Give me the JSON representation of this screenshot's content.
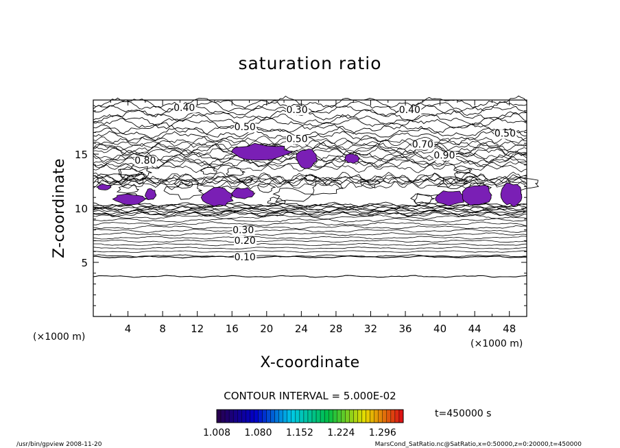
{
  "chart_data": {
    "type": "contour",
    "title": "saturation ratio",
    "xlabel": "X-coordinate",
    "ylabel": "Z-coordinate",
    "x_unit_label": "(×1000 m)",
    "x_unit_label_right": "(×1000 m)",
    "xlim": [
      0,
      50
    ],
    "ylim": [
      0,
      20
    ],
    "x_ticks": [
      4,
      8,
      12,
      16,
      20,
      24,
      28,
      32,
      36,
      40,
      44,
      48
    ],
    "y_ticks": [
      5,
      10,
      15
    ],
    "contour_interval_text": "CONTOUR INTERVAL = 5.000E-02",
    "time_text": "t=450000 s",
    "contour_labels": [
      {
        "text": "0.40",
        "x": 10.5,
        "z": 19.0
      },
      {
        "text": "0.30",
        "x": 23.5,
        "z": 18.8
      },
      {
        "text": "0.40",
        "x": 36.5,
        "z": 18.8
      },
      {
        "text": "0.50",
        "x": 17.5,
        "z": 17.2
      },
      {
        "text": "0.50",
        "x": 47.5,
        "z": 16.6
      },
      {
        "text": "0.50",
        "x": 23.5,
        "z": 16.1
      },
      {
        "text": "0.70",
        "x": 38.0,
        "z": 15.6
      },
      {
        "text": "0.90",
        "x": 40.5,
        "z": 14.6
      },
      {
        "text": "0.80",
        "x": 6.0,
        "z": 14.1
      },
      {
        "text": "0.20",
        "x": 17.5,
        "z": 6.7
      },
      {
        "text": "0.10",
        "x": 17.5,
        "z": 5.2
      },
      {
        "text": "0.30",
        "x": 17.3,
        "z": 7.7
      }
    ],
    "supersaturated_fill": "#7a1fb5",
    "colorbar": {
      "ticks": [
        "1.008",
        "1.080",
        "1.152",
        "1.224",
        "1.296"
      ],
      "range": [
        1.008,
        1.332
      ]
    }
  },
  "footer": {
    "left": "/usr/bin/gpview   2008-11-20",
    "right": "MarsCond_SatRatio.nc@SatRatio,x=0:50000,z=0:20000,t=450000"
  }
}
